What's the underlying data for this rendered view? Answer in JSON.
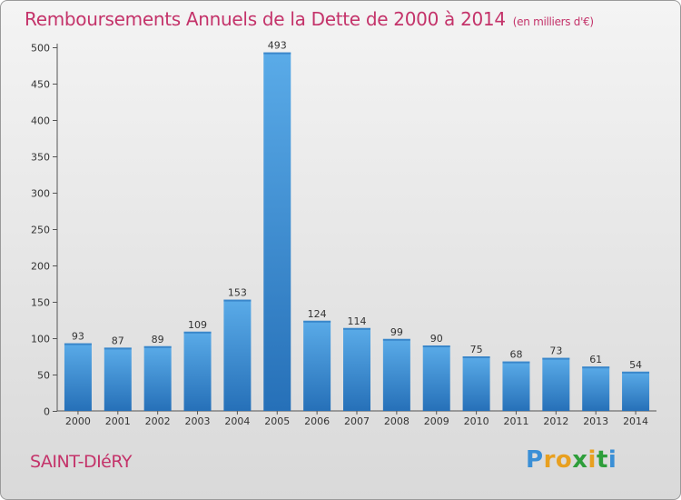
{
  "header": {
    "title": "Remboursements Annuels de la Dette de 2000 à 2014",
    "unit": "(en milliers d'€)"
  },
  "footer": {
    "commune": "SAINT-DIéRY",
    "logo": {
      "letters": [
        "P",
        "r",
        "o",
        "x",
        "i",
        "t",
        "i"
      ],
      "colors": [
        "#3a8fd6",
        "#e8a020",
        "#e8a020",
        "#2e9e3a",
        "#e8a020",
        "#2e9e3a",
        "#3a8fd6"
      ]
    }
  },
  "chart_data": {
    "type": "bar",
    "title": "Remboursements Annuels de la Dette de 2000 à 2014",
    "xlabel": "",
    "ylabel": "",
    "categories": [
      "2000",
      "2001",
      "2002",
      "2003",
      "2004",
      "2005",
      "2006",
      "2007",
      "2008",
      "2009",
      "2010",
      "2011",
      "2012",
      "2013",
      "2014"
    ],
    "values": [
      93,
      87,
      89,
      109,
      153,
      493,
      124,
      114,
      99,
      90,
      75,
      68,
      73,
      61,
      54
    ],
    "ylim": [
      0,
      500
    ],
    "yticks": [
      0,
      50,
      100,
      150,
      200,
      250,
      300,
      350,
      400,
      450,
      500
    ],
    "grid": false,
    "bar_color": "#3d8fd6",
    "bar_color_light": "#5aabe8",
    "bar_color_dark": "#2670b8"
  }
}
